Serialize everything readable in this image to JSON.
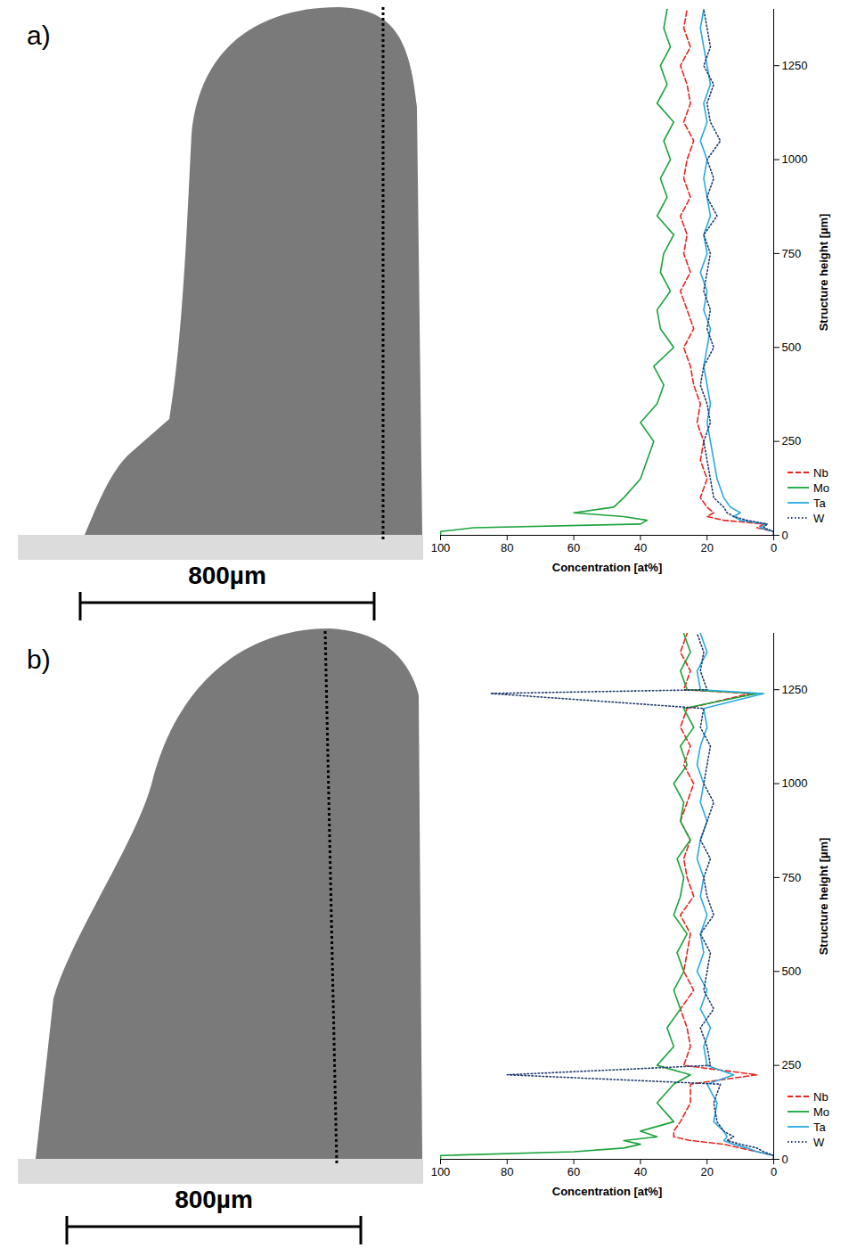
{
  "chart_data": [
    {
      "type": "line",
      "panel_label": "a)",
      "scale_bar_label": "800µm",
      "x_label": "Concentration [at%]",
      "y_label": "Structure height [µm]",
      "xlim": [
        100,
        0
      ],
      "xticks": [
        100,
        80,
        60,
        40,
        20,
        0
      ],
      "ylim": [
        0,
        1400
      ],
      "yticks": [
        0,
        250,
        500,
        750,
        1000,
        1250
      ],
      "legend": "lower right",
      "y": [
        0,
        10,
        20,
        30,
        40,
        50,
        60,
        75,
        100,
        150,
        200,
        250,
        300,
        350,
        400,
        450,
        500,
        550,
        600,
        650,
        700,
        750,
        800,
        850,
        900,
        950,
        1000,
        1050,
        1100,
        1150,
        1200,
        1250,
        1300,
        1350,
        1400
      ],
      "series": [
        {
          "name": "Nb",
          "color": "#e8251f",
          "line_style": "dashed",
          "values": [
            0,
            0,
            5,
            3,
            15,
            20,
            18,
            20,
            22,
            20,
            22,
            21,
            23,
            22,
            24,
            25,
            27,
            24,
            26,
            28,
            25,
            27,
            26,
            28,
            25,
            27,
            26,
            24,
            27,
            25,
            26,
            28,
            25,
            27,
            26
          ]
        },
        {
          "name": "Mo",
          "color": "#1aa33a",
          "line_style": "solid",
          "values": [
            100,
            100,
            90,
            40,
            38,
            45,
            60,
            48,
            45,
            40,
            38,
            36,
            40,
            35,
            33,
            36,
            30,
            34,
            35,
            31,
            34,
            33,
            30,
            35,
            32,
            34,
            31,
            33,
            30,
            35,
            32,
            34,
            31,
            33,
            32
          ]
        },
        {
          "name": "Ta",
          "color": "#29a8e0",
          "line_style": "solid",
          "values": [
            0,
            0,
            4,
            2,
            10,
            12,
            10,
            13,
            15,
            17,
            18,
            19,
            20,
            19,
            20,
            21,
            20,
            19,
            21,
            20,
            22,
            20,
            21,
            19,
            20,
            21,
            20,
            22,
            20,
            21,
            19,
            20,
            21,
            22,
            21
          ]
        },
        {
          "name": "W",
          "color": "#1f3a6e",
          "line_style": "dotted",
          "values": [
            0,
            0,
            3,
            2,
            8,
            12,
            14,
            15,
            18,
            19,
            20,
            21,
            19,
            20,
            22,
            21,
            18,
            20,
            19,
            21,
            20,
            19,
            21,
            17,
            20,
            18,
            20,
            16,
            19,
            20,
            18,
            21,
            19,
            20,
            21
          ]
        }
      ]
    },
    {
      "type": "line",
      "panel_label": "b)",
      "scale_bar_label": "800µm",
      "x_label": "Concentration [at%]",
      "y_label": "Structure height [µm]",
      "xlim": [
        100,
        0
      ],
      "xticks": [
        100,
        80,
        60,
        40,
        20,
        0
      ],
      "ylim": [
        0,
        1400
      ],
      "yticks": [
        0,
        250,
        500,
        750,
        1000,
        1250
      ],
      "legend": "lower right",
      "y": [
        0,
        10,
        20,
        30,
        40,
        50,
        60,
        75,
        100,
        150,
        200,
        225,
        250,
        300,
        350,
        400,
        450,
        500,
        550,
        600,
        650,
        700,
        750,
        800,
        850,
        900,
        950,
        1000,
        1050,
        1100,
        1150,
        1200,
        1240,
        1250,
        1300,
        1350,
        1400
      ],
      "series": [
        {
          "name": "Nb",
          "color": "#e8251f",
          "line_style": "dashed",
          "values": [
            0,
            0,
            5,
            10,
            15,
            25,
            30,
            30,
            28,
            25,
            25,
            5,
            27,
            25,
            26,
            28,
            24,
            27,
            26,
            25,
            28,
            24,
            26,
            27,
            25,
            28,
            26,
            24,
            27,
            25,
            28,
            26,
            7,
            27,
            25,
            28,
            26
          ]
        },
        {
          "name": "Mo",
          "color": "#1aa33a",
          "line_style": "solid",
          "values": [
            100,
            100,
            60,
            45,
            40,
            45,
            35,
            40,
            30,
            35,
            30,
            25,
            35,
            30,
            32,
            28,
            30,
            27,
            29,
            26,
            30,
            28,
            27,
            29,
            25,
            28,
            27,
            30,
            26,
            28,
            24,
            27,
            5,
            26,
            28,
            25,
            27
          ]
        },
        {
          "name": "Ta",
          "color": "#29a8e0",
          "line_style": "solid",
          "values": [
            0,
            0,
            5,
            8,
            12,
            15,
            14,
            15,
            18,
            17,
            20,
            12,
            20,
            21,
            19,
            22,
            20,
            23,
            21,
            22,
            20,
            22,
            21,
            23,
            22,
            20,
            22,
            21,
            23,
            22,
            20,
            21,
            3,
            22,
            23,
            20,
            22
          ]
        },
        {
          "name": "W",
          "color": "#1f3a6e",
          "line_style": "dotted",
          "values": [
            0,
            0,
            3,
            5,
            10,
            14,
            12,
            15,
            17,
            18,
            16,
            80,
            19,
            20,
            22,
            18,
            21,
            20,
            19,
            22,
            18,
            20,
            21,
            19,
            22,
            20,
            18,
            21,
            20,
            19,
            22,
            21,
            85,
            20,
            22,
            21,
            23
          ]
        }
      ]
    }
  ]
}
